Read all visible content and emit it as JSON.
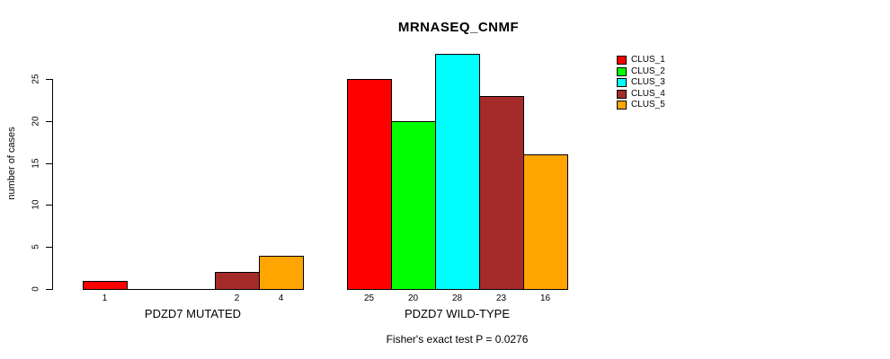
{
  "chart_data": {
    "type": "bar",
    "title": "MRNASEQ_CNMF",
    "ylabel": "number of cases",
    "ylim": [
      0,
      28
    ],
    "yticks": [
      0,
      5,
      10,
      15,
      20,
      25
    ],
    "grid": false,
    "legend_position": "right",
    "series_names": [
      "CLUS_1",
      "CLUS_2",
      "CLUS_3",
      "CLUS_4",
      "CLUS_5"
    ],
    "colors": [
      "#FF0000",
      "#00FF00",
      "#00FFFF",
      "#A52A2A",
      "#FFA500"
    ],
    "groups": [
      {
        "label": "PDZD7 MUTATED",
        "values": [
          1,
          0,
          0,
          2,
          4
        ]
      },
      {
        "label": "PDZD7 WILD-TYPE",
        "values": [
          25,
          20,
          28,
          23,
          16
        ]
      }
    ],
    "bar_value_labels_shown": [
      [
        "1",
        "2",
        "4"
      ],
      [
        "25",
        "20",
        "28",
        "23",
        "16"
      ]
    ],
    "annotation": "Fisher's exact test P = 0.0276"
  }
}
